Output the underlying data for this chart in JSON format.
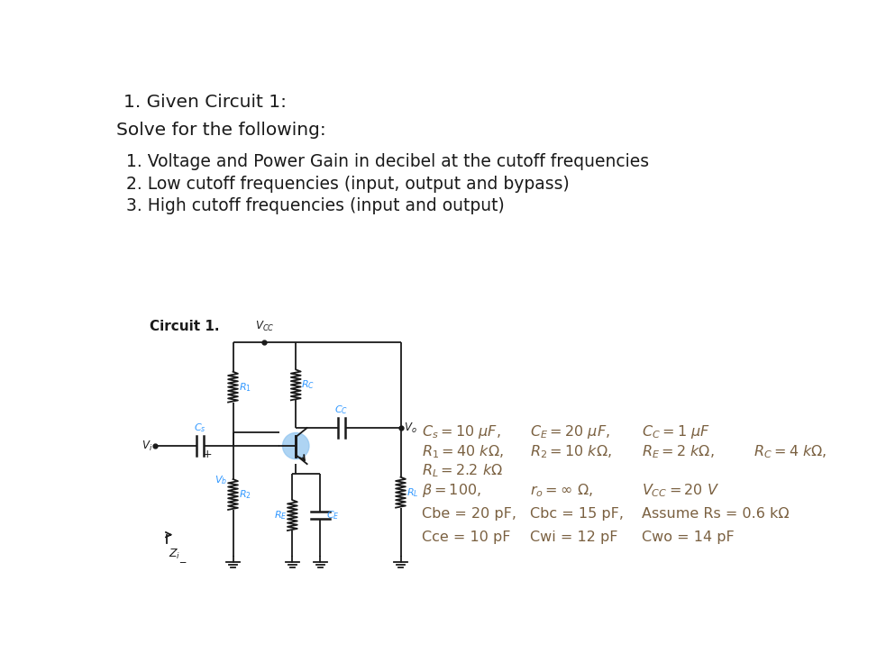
{
  "bg_color": "#ffffff",
  "text_color": "#1a1a1a",
  "circuit_color": "#1a1a1a",
  "label_color": "#3399FF",
  "param_color": "#7a6040",
  "title_line": "1. Given Circuit 1:",
  "subtitle_line": "Solve for the following:",
  "item1": "1. Voltage and Power Gain in decibel at the cutoff frequencies",
  "item2": "2. Low cutoff frequencies (input, output and bypass)",
  "item3": "3. High cutoff frequencies (input and output)",
  "circuit_label": "Circuit 1."
}
